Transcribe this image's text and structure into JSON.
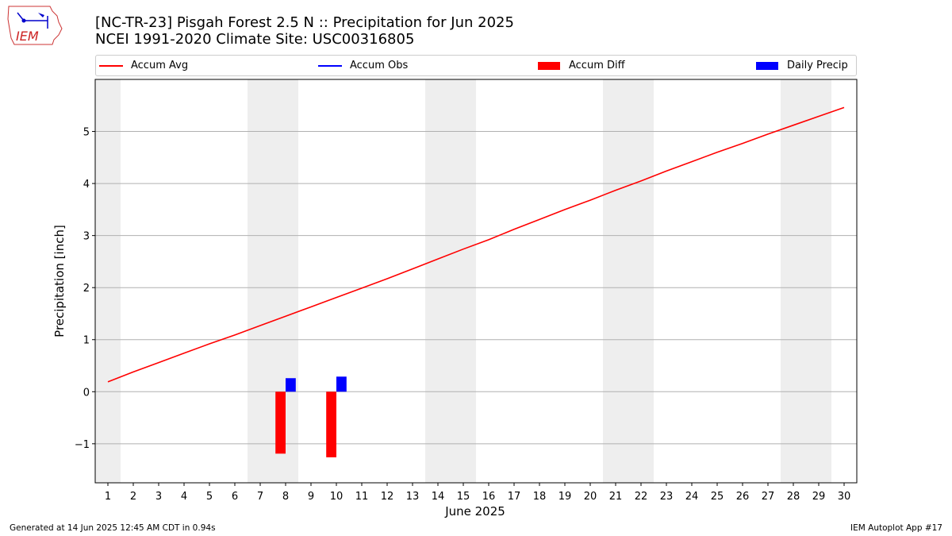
{
  "header": {
    "title_line1": "[NC-TR-23] Pisgah Forest 2.5 N :: Precipitation for Jun 2025",
    "title_line2": "NCEI 1991-2020 Climate Site: USC00316805"
  },
  "logo": {
    "text": "IEM",
    "color": "#cc2222"
  },
  "legend": {
    "items": [
      {
        "label": "Accum Avg",
        "kind": "line",
        "color": "#ff0000"
      },
      {
        "label": "Accum Obs",
        "kind": "line",
        "color": "#0000ff"
      },
      {
        "label": "Accum Diff",
        "kind": "box",
        "color": "#ff0000"
      },
      {
        "label": "Daily Precip",
        "kind": "box",
        "color": "#0000ff"
      }
    ]
  },
  "chart_data": {
    "type": "bar",
    "xlabel": "June 2025",
    "ylabel": "Precipitation [inch]",
    "x_ticks": [
      1,
      2,
      3,
      4,
      5,
      6,
      7,
      8,
      9,
      10,
      11,
      12,
      13,
      14,
      15,
      16,
      17,
      18,
      19,
      20,
      21,
      22,
      23,
      24,
      25,
      26,
      27,
      28,
      29,
      30
    ],
    "xlim": [
      0.5,
      30.5
    ],
    "ylim": [
      -1.75,
      6.0
    ],
    "y_ticks": [
      -1,
      0,
      1,
      2,
      3,
      4,
      5
    ],
    "y_tick_labels": [
      "−1",
      "0",
      "1",
      "2",
      "3",
      "4",
      "5"
    ],
    "weekend_shading": [
      [
        0.5,
        1.5
      ],
      [
        6.5,
        8.5
      ],
      [
        13.5,
        15.5
      ],
      [
        20.5,
        22.5
      ],
      [
        27.5,
        29.5
      ]
    ],
    "shade_color": "#eeeeee",
    "grid": "horizontal",
    "series": [
      {
        "name": "Accum Avg",
        "kind": "line",
        "color": "#ff0000",
        "x": [
          1,
          2,
          3,
          4,
          5,
          6,
          7,
          8,
          9,
          10,
          11,
          12,
          13,
          14,
          15,
          16,
          17,
          18,
          19,
          20,
          21,
          22,
          23,
          24,
          25,
          26,
          27,
          28,
          29,
          30
        ],
        "values": [
          0.19,
          0.38,
          0.56,
          0.74,
          0.92,
          1.09,
          1.27,
          1.45,
          1.63,
          1.81,
          1.99,
          2.17,
          2.36,
          2.55,
          2.74,
          2.92,
          3.12,
          3.31,
          3.5,
          3.68,
          3.87,
          4.05,
          4.24,
          4.42,
          4.6,
          4.77,
          4.95,
          5.12,
          5.29,
          5.46
        ]
      },
      {
        "name": "Accum Diff",
        "kind": "bar",
        "color": "#ff0000",
        "x": [
          8,
          10
        ],
        "values": [
          -1.19,
          -1.26
        ]
      },
      {
        "name": "Daily Precip",
        "kind": "bar",
        "color": "#0000ff",
        "x": [
          8,
          10
        ],
        "values": [
          0.26,
          0.29
        ]
      }
    ]
  },
  "footer": {
    "left": "Generated at 14 Jun 2025 12:45 AM CDT in 0.94s",
    "right": "IEM Autoplot App #17"
  }
}
